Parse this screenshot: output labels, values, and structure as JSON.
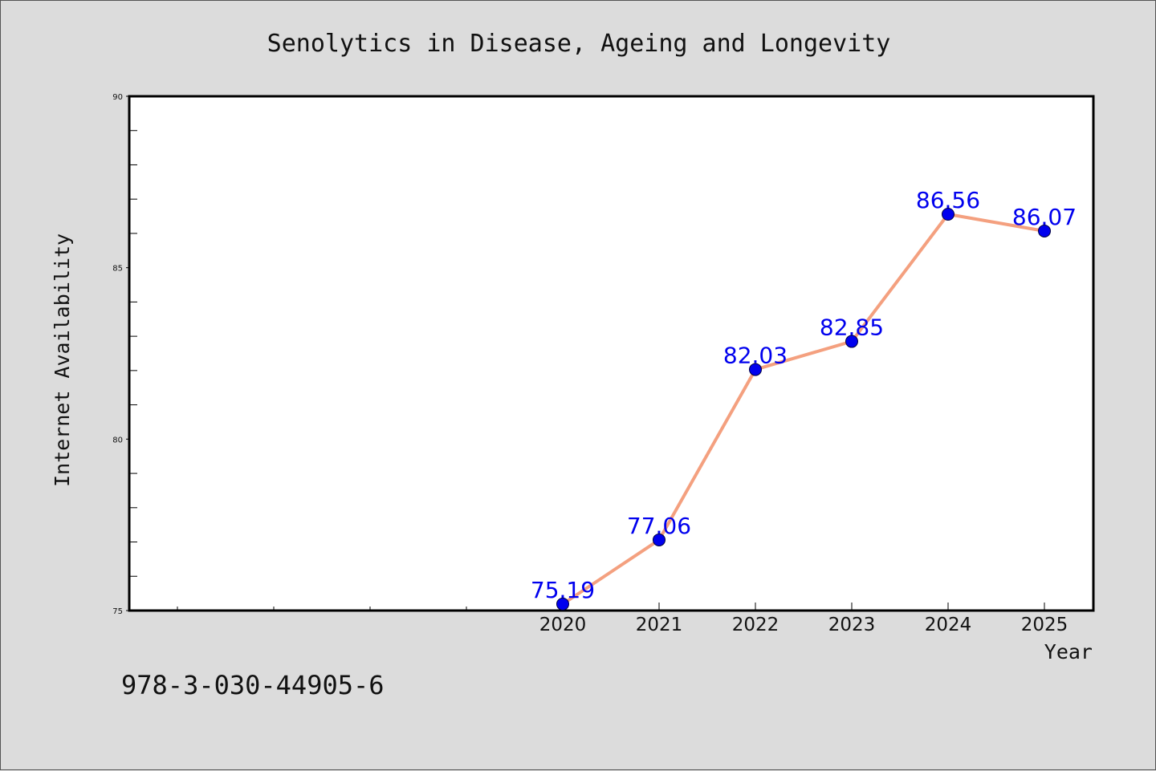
{
  "chart_data": {
    "type": "line",
    "title": "Senolytics in Disease, Ageing and Longevity",
    "xlabel": "Year",
    "ylabel": "Internet Availability",
    "x": [
      "2020",
      "2021",
      "2022",
      "2023",
      "2024",
      "2025"
    ],
    "series": [
      {
        "values": [
          75.19,
          77.06,
          82.03,
          82.85,
          86.56,
          86.07
        ],
        "labels": [
          "75.19",
          "77.06",
          "82.03",
          "82.85",
          "86.56",
          "86.07"
        ]
      }
    ],
    "ylim": [
      75,
      90
    ],
    "y_ticks": [
      "75",
      "80",
      "85",
      "90"
    ],
    "grid": false,
    "line_color": "#f4a07f",
    "marker_color": "#0000ee",
    "label_color": "#0000ee"
  },
  "footer": {
    "isbn": "978-3-030-44905-6"
  }
}
